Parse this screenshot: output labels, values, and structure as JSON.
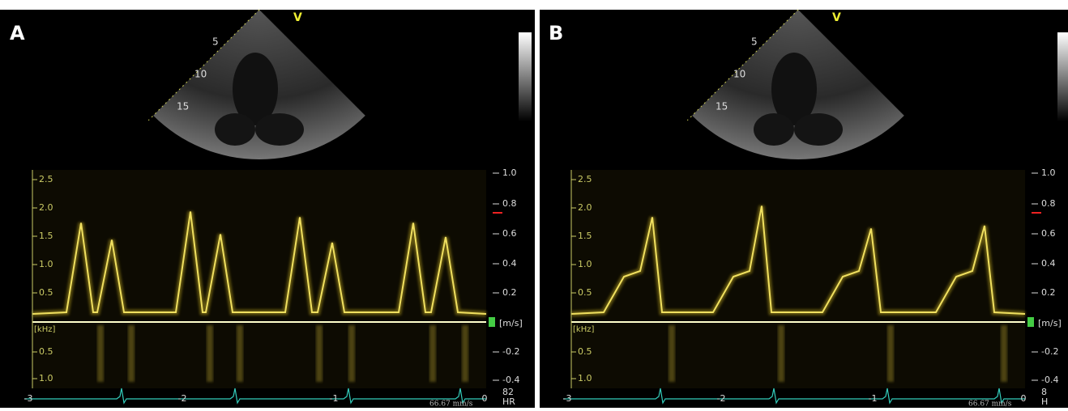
{
  "panels": [
    {
      "label": "A",
      "probe_marker": "V",
      "depth_labels": [
        "5",
        "10",
        "15"
      ],
      "freq_labels_top": [
        "2.5",
        "2.0",
        "1.5",
        "1.0",
        "0.5"
      ],
      "freq_labels_bottom": [
        "0.5",
        "1.0"
      ],
      "freq_unit": "[kHz]",
      "velocity_labels": [
        "1.0",
        "0.8",
        "0.6",
        "0.4",
        "0.2",
        "-0.2",
        "-0.4"
      ],
      "velocity_unit": "[m/s]",
      "time_labels": [
        "-3",
        "-2",
        "-1",
        "0"
      ],
      "sweep_speed": "66.67 mm/s",
      "heart_rate": "82",
      "heart_rate_unit": "HR"
    },
    {
      "label": "B",
      "probe_marker": "V",
      "depth_labels": [
        "5",
        "10",
        "15"
      ],
      "freq_labels_top": [
        "2.5",
        "2.0",
        "1.5",
        "1.0",
        "0.5"
      ],
      "freq_labels_bottom": [
        "0.5",
        "1.0"
      ],
      "freq_unit": "[kHz]",
      "velocity_labels": [
        "1.0",
        "0.8",
        "0.6",
        "0.4",
        "0.2",
        "-0.2",
        "-0.4"
      ],
      "velocity_unit": "[m/s]",
      "time_labels": [
        "-3",
        "-2",
        "-1",
        "0"
      ],
      "sweep_speed": "66.67 mm/s",
      "heart_rate": "8",
      "heart_rate_unit": "H"
    }
  ]
}
